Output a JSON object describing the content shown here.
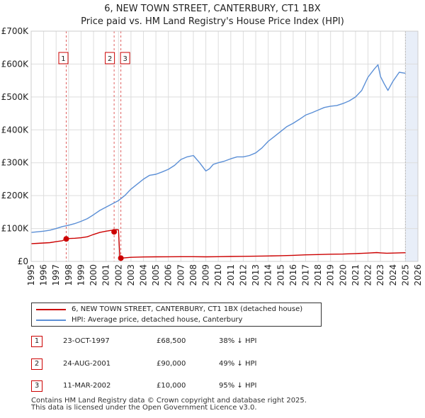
{
  "title_line1": "6, NEW TOWN STREET, CANTERBURY, CT1 1BX",
  "title_line2": "Price paid vs. HM Land Registry's House Price Index (HPI)",
  "colors": {
    "price_paid": "#cc0000",
    "hpi": "#5b8fd6",
    "grid": "#dddddd",
    "shade": "#e8eef8",
    "vline": "#e06060"
  },
  "chart_data": {
    "type": "line",
    "title": "Price paid vs. HM Land Registry's House Price Index (HPI)",
    "xlabel": "",
    "ylabel": "",
    "xlim": [
      1995,
      2026
    ],
    "ylim": [
      0,
      700000
    ],
    "y_ticks": [
      0,
      100000,
      200000,
      300000,
      400000,
      500000,
      600000,
      700000
    ],
    "y_tick_labels": [
      "£0",
      "£100K",
      "£200K",
      "£300K",
      "£400K",
      "£500K",
      "£600K",
      "£700K"
    ],
    "x_ticks": [
      1995,
      1996,
      1997,
      1998,
      1999,
      2000,
      2001,
      2002,
      2003,
      2004,
      2005,
      2006,
      2007,
      2008,
      2009,
      2010,
      2011,
      2012,
      2013,
      2014,
      2015,
      2016,
      2017,
      2018,
      2019,
      2020,
      2021,
      2022,
      2023,
      2024,
      2025,
      2026
    ],
    "x_tick_labels": [
      "1995",
      "1996",
      "1997",
      "1998",
      "1999",
      "2000",
      "2001",
      "2002",
      "2003",
      "2004",
      "2005",
      "2006",
      "2007",
      "2008",
      "2009",
      "2010",
      "2011",
      "2012",
      "2013",
      "2014",
      "2015",
      "2016",
      "2017",
      "2018",
      "2019",
      "2020",
      "2021",
      "2022",
      "2023",
      "2024",
      "2025",
      "2026"
    ],
    "shaded_region_start": 2025.0,
    "series": [
      {
        "name": "6, NEW TOWN STREET, CANTERBURY, CT1 1BX (detached house)",
        "color": "#cc0000",
        "x": [
          1995.0,
          1995.5,
          1996.0,
          1996.5,
          1997.0,
          1997.5,
          1997.81,
          1998.0,
          1998.5,
          1999.0,
          1999.5,
          2000.0,
          2000.5,
          2001.0,
          2001.5,
          2001.65,
          2001.8,
          2002.0,
          2002.1,
          2002.19,
          2002.5,
          2003,
          2004,
          2005,
          2006,
          2007,
          2008,
          2009,
          2010,
          2011,
          2012,
          2013,
          2014,
          2015,
          2016,
          2017,
          2018,
          2019,
          2020,
          2021,
          2022,
          2022.7,
          2023,
          2023.5,
          2024,
          2024.5,
          2025.0
        ],
        "y": [
          54000,
          55000,
          56000,
          57000,
          60000,
          63000,
          68500,
          69500,
          70500,
          72000,
          75000,
          82000,
          88000,
          92000,
          95000,
          90000,
          97000,
          96000,
          15000,
          10000,
          11000,
          12500,
          13500,
          14000,
          14200,
          14400,
          14400,
          14000,
          14500,
          15000,
          15500,
          16000,
          16500,
          17500,
          18500,
          20000,
          21000,
          22000,
          22500,
          24000,
          25500,
          27000,
          26000,
          25000,
          25500,
          26000,
          26500
        ]
      },
      {
        "name": "HPI: Average price, detached house, Canterbury",
        "color": "#5b8fd6",
        "x": [
          1995.0,
          1995.5,
          1996.0,
          1996.5,
          1997.0,
          1997.5,
          1998.0,
          1998.5,
          1999.0,
          1999.5,
          2000.0,
          2000.5,
          2001.0,
          2001.5,
          2002.0,
          2002.5,
          2003.0,
          2003.5,
          2004.0,
          2004.5,
          2005.0,
          2005.5,
          2006.0,
          2006.5,
          2007.0,
          2007.5,
          2008.0,
          2008.5,
          2008.8,
          2009.0,
          2009.3,
          2009.6,
          2010.0,
          2010.5,
          2011.0,
          2011.5,
          2012.0,
          2012.5,
          2013.0,
          2013.5,
          2014.0,
          2014.5,
          2015.0,
          2015.5,
          2016.0,
          2016.5,
          2017.0,
          2017.5,
          2018.0,
          2018.5,
          2019.0,
          2019.5,
          2020.0,
          2020.5,
          2021.0,
          2021.5,
          2022.0,
          2022.5,
          2022.8,
          2023.0,
          2023.3,
          2023.6,
          2024.0,
          2024.5,
          2025.0
        ],
        "y": [
          88000,
          90000,
          92000,
          95000,
          100000,
          106000,
          110000,
          115000,
          122000,
          130000,
          142000,
          155000,
          165000,
          175000,
          185000,
          200000,
          220000,
          235000,
          250000,
          262000,
          265000,
          272000,
          280000,
          292000,
          310000,
          318000,
          322000,
          300000,
          285000,
          275000,
          282000,
          295000,
          300000,
          305000,
          312000,
          318000,
          318000,
          322000,
          330000,
          345000,
          365000,
          380000,
          395000,
          410000,
          420000,
          432000,
          445000,
          452000,
          460000,
          468000,
          472000,
          474000,
          480000,
          488000,
          500000,
          520000,
          560000,
          585000,
          598000,
          562000,
          540000,
          520000,
          548000,
          575000,
          572000
        ]
      }
    ],
    "sales": [
      {
        "num": "1",
        "x": 1997.81,
        "y": 68500
      },
      {
        "num": "2",
        "x": 2001.65,
        "y": 90000
      },
      {
        "num": "3",
        "x": 2002.19,
        "y": 10000
      }
    ]
  },
  "legend": {
    "price_paid_label": "6, NEW TOWN STREET, CANTERBURY, CT1 1BX (detached house)",
    "hpi_label": "HPI: Average price, detached house, Canterbury"
  },
  "sales_table": [
    {
      "num": "1",
      "date": "23-OCT-1997",
      "price": "£68,500",
      "hpi": "38% ↓ HPI"
    },
    {
      "num": "2",
      "date": "24-AUG-2001",
      "price": "£90,000",
      "hpi": "49% ↓ HPI"
    },
    {
      "num": "3",
      "date": "11-MAR-2002",
      "price": "£10,000",
      "hpi": "95% ↓ HPI"
    }
  ],
  "footer_line1": "Contains HM Land Registry data © Crown copyright and database right 2025.",
  "footer_line2": "This data is licensed under the Open Government Licence v3.0."
}
